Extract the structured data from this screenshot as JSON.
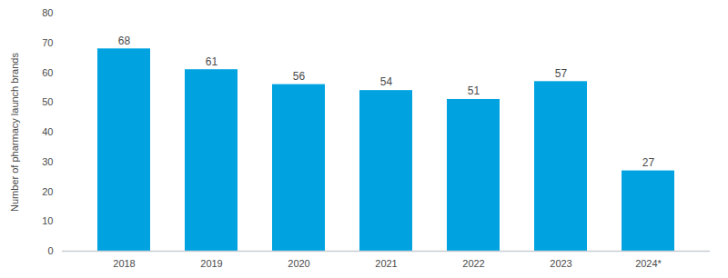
{
  "chart_data": {
    "type": "bar",
    "categories": [
      "2018",
      "2019",
      "2020",
      "2021",
      "2022",
      "2023",
      "2024*"
    ],
    "values": [
      68,
      61,
      56,
      54,
      51,
      57,
      27
    ],
    "color": "#00a3e0",
    "y_label": "Number of pharmacy launch brands",
    "ylim": [
      0,
      80
    ],
    "yticks": [
      0,
      10,
      20,
      30,
      40,
      50,
      60,
      70,
      80
    ],
    "grid": false,
    "data_labels": true
  }
}
